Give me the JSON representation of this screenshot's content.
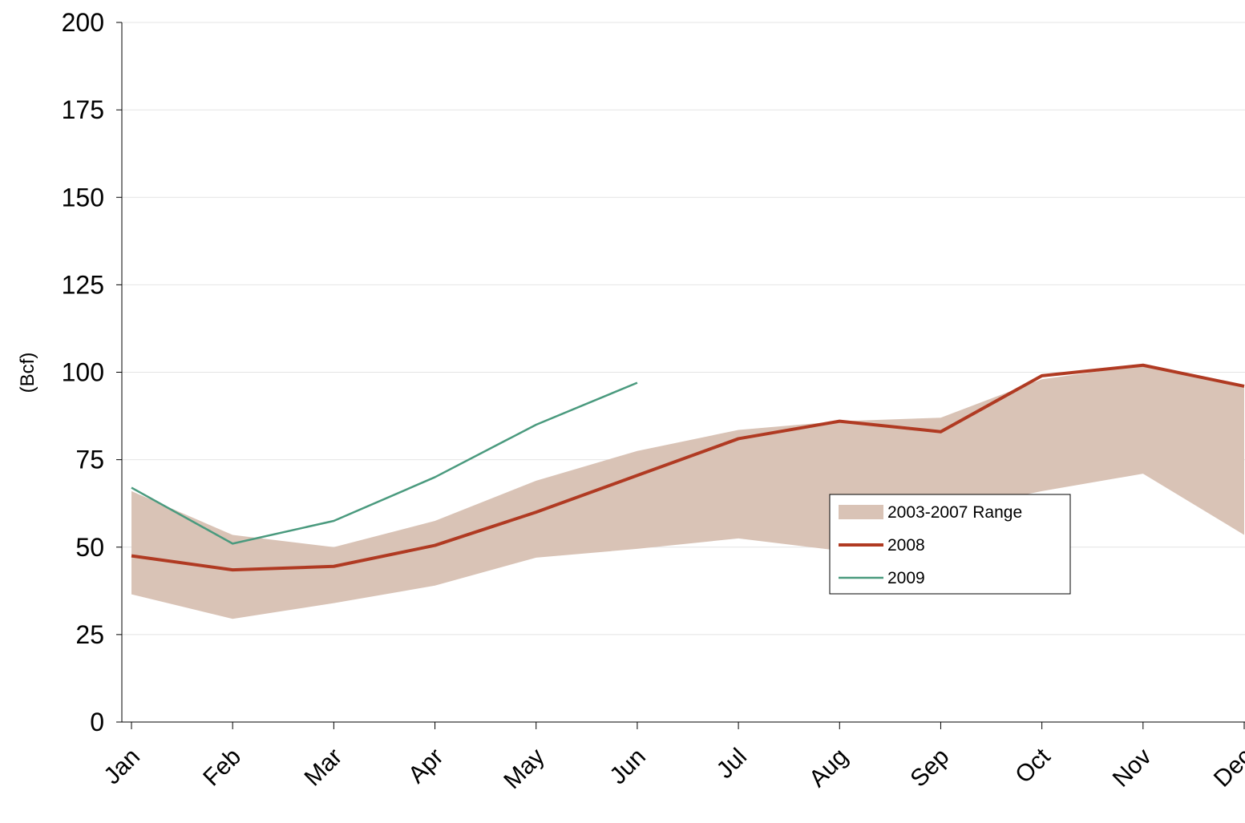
{
  "chart_data": {
    "type": "line",
    "y_label": "(Bcf)",
    "categories": [
      "Jan",
      "Feb",
      "Mar",
      "Apr",
      "May",
      "Jun",
      "Jul",
      "Aug",
      "Sep",
      "Oct",
      "Nov",
      "Dec"
    ],
    "series": [
      {
        "name": "2003-2007 Range",
        "type": "range",
        "color": "#d9c3b6",
        "high": [
          66,
          53.5,
          50,
          57.5,
          69,
          77.5,
          83.5,
          86,
          87,
          98,
          102,
          96
        ],
        "low": [
          36.5,
          29.5,
          34,
          39,
          47,
          49.5,
          52.5,
          49,
          60,
          66,
          71,
          53.5
        ]
      },
      {
        "name": "2008",
        "color": "#b03a22",
        "values": [
          47.5,
          43.5,
          44.5,
          50.5,
          60,
          70.5,
          81,
          86,
          83,
          99,
          102,
          96
        ]
      },
      {
        "name": "2009",
        "color": "#4a9a7e",
        "values": [
          67,
          51,
          57.5,
          70,
          85,
          97,
          null,
          null,
          null,
          null,
          null,
          null
        ]
      }
    ],
    "ylim": [
      0,
      200
    ],
    "yticks": [
      0,
      25,
      50,
      75,
      100,
      125,
      150,
      175,
      200
    ],
    "grid": true
  }
}
